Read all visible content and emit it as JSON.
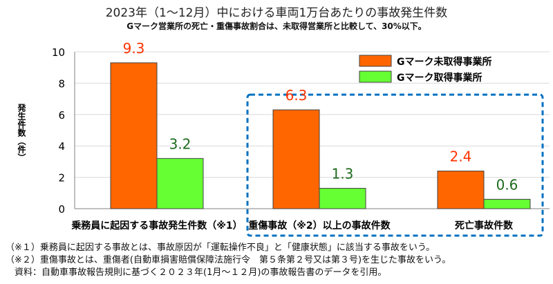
{
  "chart_data": {
    "type": "bar",
    "title": "2023年（1～12月）中における車両1万台あたりの事故発生件数",
    "subtitle": "Gマーク営業所の死亡・重傷事故割合は、未取得営業所と比較して、30%以下。",
    "xlabel": "",
    "ylabel": "発生件数（件）",
    "ylim": [
      0,
      10
    ],
    "yticks": [
      0,
      2,
      4,
      6,
      8,
      10
    ],
    "grid": true,
    "legend_position": "top-right",
    "categories": [
      "乗務員に起因する事故発生件数（※1）",
      "重傷事故（※2）以上の事故件数",
      "死亡事故件数"
    ],
    "series": [
      {
        "name": "Gマーク未取得事業所",
        "values": [
          9.3,
          6.3,
          2.4
        ],
        "color": "#ff6600",
        "label_color": "#ff3300"
      },
      {
        "name": "Gマーク取得事業所",
        "values": [
          3.2,
          1.3,
          0.6
        ],
        "color": "#66ff33",
        "label_color": "#1e6b1e"
      }
    ]
  },
  "colors": {
    "highlight_box": "#0070c0",
    "grid": "#d9d9d9",
    "bar_stroke": "#404040"
  },
  "notes": [
    "（※１）乗務員に起因する事故とは、事故原因が「運転操作不良」と「健康状態」に該当する事故をいう。",
    "（※２）重傷事故とは、重傷者(自動車損害賠償保障法施行令　第５条第２号又は第３号)を生じた事故をいう。",
    "　資料：自動車事故報告規則に基づく２０２３年(1月～１２月)の事故報告書のデータを引用。"
  ]
}
